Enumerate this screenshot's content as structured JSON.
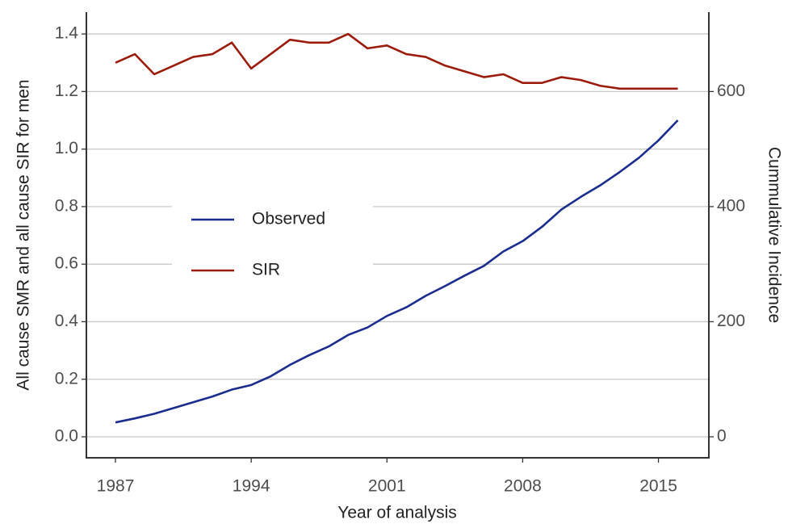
{
  "chart_data": {
    "type": "line",
    "x_label": "Year of analysis",
    "y_label": "All cause SMR and all cause SIR for men",
    "y2_label": "Cummulative Incidence",
    "x": [
      1987,
      1988,
      1989,
      1990,
      1991,
      1992,
      1993,
      1994,
      1995,
      1996,
      1997,
      1998,
      1999,
      2000,
      2001,
      2002,
      2003,
      2004,
      2005,
      2006,
      2007,
      2008,
      2009,
      2010,
      2011,
      2012,
      2013,
      2014,
      2015,
      2016
    ],
    "series": [
      {
        "name": "Observed",
        "color": "#1a2d8f",
        "axis": "y2",
        "values": [
          25,
          32,
          40,
          50,
          60,
          70,
          82,
          90,
          105,
          125,
          142,
          157,
          177,
          190,
          210,
          225,
          245,
          262,
          280,
          297,
          322,
          340,
          365,
          395,
          417,
          437,
          460,
          485,
          515,
          550
        ]
      },
      {
        "name": "SIR",
        "color": "#9b1c0c",
        "values": [
          1.3,
          1.33,
          1.26,
          1.29,
          1.32,
          1.33,
          1.37,
          1.28,
          1.33,
          1.38,
          1.37,
          1.37,
          1.4,
          1.35,
          1.36,
          1.33,
          1.32,
          1.29,
          1.27,
          1.25,
          1.26,
          1.23,
          1.23,
          1.25,
          1.24,
          1.22,
          1.21,
          1.21,
          1.21,
          1.21
        ]
      }
    ],
    "xlim": [
      1985.5,
      2017.6
    ],
    "xticks": [
      1987,
      1994,
      2001,
      2008,
      2015
    ],
    "ylim": [
      -0.073,
      1.476
    ],
    "yticks": [
      {
        "value": 0,
        "label": "0.0"
      },
      0.2,
      0.4,
      0.6,
      0.8,
      {
        "value": 1,
        "label": "1.0"
      },
      {
        "value": 1.2,
        "label": "1.2"
      },
      {
        "value": 1.4,
        "label": "1.4"
      }
    ],
    "y2lim": [
      -36.5,
      738
    ],
    "y2ticks": [
      0,
      200,
      400,
      600
    ],
    "grid": true
  }
}
